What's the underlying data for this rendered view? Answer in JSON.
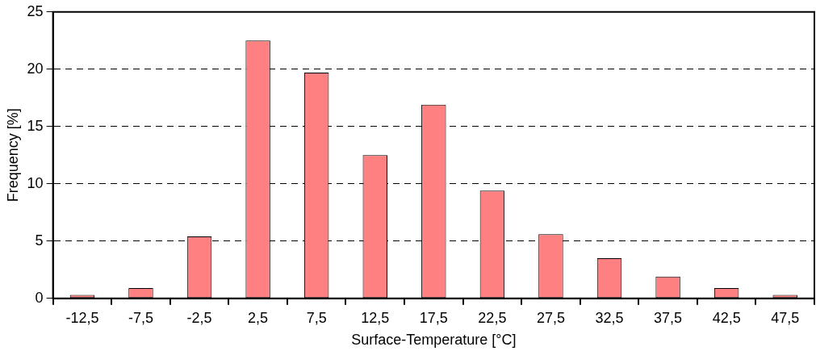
{
  "chart_data": {
    "type": "bar",
    "xlabel": "Surface-Temperature [°C]",
    "ylabel": "Frequency [%]",
    "categories": [
      "-12,5",
      "-7,5",
      "-2,5",
      "2,5",
      "7,5",
      "12,5",
      "17,5",
      "22,5",
      "27,5",
      "32,5",
      "37,5",
      "42,5",
      "47,5"
    ],
    "values": [
      0.3,
      0.9,
      5.4,
      22.5,
      19.7,
      12.5,
      16.9,
      9.4,
      5.6,
      3.5,
      1.9,
      0.9,
      0.3
    ],
    "color": "#ff8080",
    "ylim": [
      0,
      25
    ],
    "yticks": [
      0,
      5,
      10,
      15,
      20,
      25
    ],
    "grid": "y",
    "legend": false
  }
}
